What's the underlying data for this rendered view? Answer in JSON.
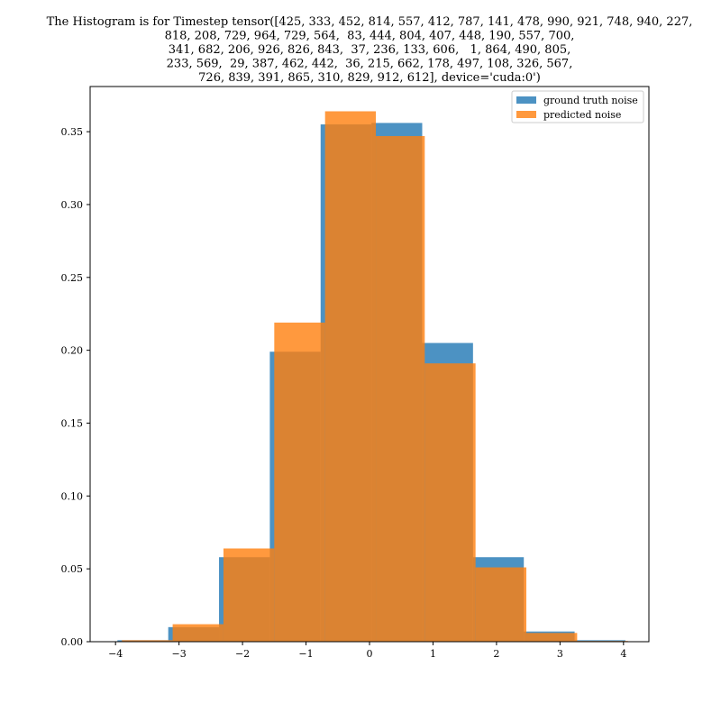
{
  "chart_data": {
    "type": "bar",
    "title_lines": [
      "The Histogram is for Timestep tensor([425, 333, 452, 814, 557, 412, 787, 141, 478, 990, 921, 748, 940, 227,",
      "818, 208, 729, 964, 729, 564,  83, 444, 804, 407, 448, 190, 557, 700,",
      "341, 682, 206, 926, 826, 843,  37, 236, 133, 606,   1, 864, 490, 805,",
      "233, 569,  29, 387, 462, 442,  36, 215, 662, 178, 497, 108, 326, 567,",
      "726, 839, 391, 865, 310, 829, 912, 612], device='cuda:0')"
    ],
    "xlim": [
      -4.4,
      4.4
    ],
    "ylim": [
      0,
      0.381
    ],
    "x_ticks": [
      -4,
      -3,
      -2,
      -1,
      0,
      1,
      2,
      3,
      4
    ],
    "x_tick_labels": [
      "−4",
      "−3",
      "−2",
      "−1",
      "0",
      "1",
      "2",
      "3",
      "4"
    ],
    "y_ticks": [
      0.0,
      0.05,
      0.1,
      0.15,
      0.2,
      0.25,
      0.3,
      0.35
    ],
    "y_tick_labels": [
      "0.00",
      "0.05",
      "0.10",
      "0.15",
      "0.20",
      "0.25",
      "0.30",
      "0.35"
    ],
    "legend_position": "upper-right",
    "series": [
      {
        "name": "ground truth noise",
        "color": "#1f77b4",
        "opacity": 0.8,
        "bin_edges": [
          -3.97,
          -3.17,
          -2.37,
          -1.57,
          -0.77,
          0.03,
          0.83,
          1.63,
          2.43,
          3.23,
          4.03
        ],
        "values": [
          0.001,
          0.01,
          0.058,
          0.199,
          0.355,
          0.356,
          0.205,
          0.058,
          0.007,
          0.001
        ]
      },
      {
        "name": "predicted noise",
        "color": "#ff7f0e",
        "opacity": 0.8,
        "bin_edges": [
          -3.9,
          -3.1,
          -2.3,
          -1.5,
          -0.7,
          0.1,
          0.87,
          1.67,
          2.47,
          3.27,
          4.07
        ],
        "values": [
          0.001,
          0.012,
          0.064,
          0.219,
          0.364,
          0.347,
          0.191,
          0.051,
          0.006,
          0.0005
        ]
      }
    ]
  }
}
